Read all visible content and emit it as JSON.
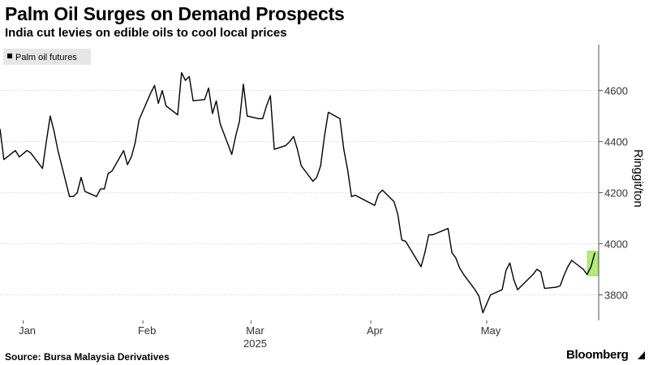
{
  "header": {
    "title": "Palm Oil Surges on Demand Prospects",
    "subtitle": "India cut levies on edible oils to cool local prices"
  },
  "footer": {
    "source": "Source: Bursa Malaysia Derivatives",
    "brand": "Bloomberg"
  },
  "colors": {
    "line": "#000000",
    "highlight": "#a6ea5e",
    "highlight_border": "#7cc236",
    "grid": "#cfcfcf",
    "axis_text": "#333333"
  },
  "chart_data": {
    "type": "line",
    "title": "Palm Oil Surges on Demand Prospects",
    "ylabel": "Ringgit/ton",
    "xlabel": "",
    "legend": {
      "entries": [
        "Palm oil futures"
      ],
      "placement": "top-left"
    },
    "grid": true,
    "ylim": [
      3700,
      4780
    ],
    "xlim": [
      "2024-12-26",
      "2025-05-30"
    ],
    "y_ticks": [
      3800,
      4000,
      4200,
      4400,
      4600
    ],
    "y_tick_labels": [
      "3800",
      "4000",
      "4200",
      "4400",
      "4600"
    ],
    "x_tick_labels": [
      {
        "date": "2025-01-01",
        "label": "Jan"
      },
      {
        "date": "2025-02-01",
        "label": "Feb"
      },
      {
        "date": "2025-03-01",
        "label": "Mar"
      },
      {
        "date": "2025-04-01",
        "label": "Apr"
      },
      {
        "date": "2025-05-01",
        "label": "May"
      }
    ],
    "year_label": "2025",
    "series": [
      {
        "name": "Palm oil futures",
        "x": [
          "2024-12-26",
          "2024-12-27",
          "2024-12-30",
          "2024-12-31",
          "2025-01-02",
          "2025-01-03",
          "2025-01-06",
          "2025-01-07",
          "2025-01-08",
          "2025-01-09",
          "2025-01-10",
          "2025-01-13",
          "2025-01-14",
          "2025-01-15",
          "2025-01-16",
          "2025-01-17",
          "2025-01-20",
          "2025-01-21",
          "2025-01-22",
          "2025-01-23",
          "2025-01-24",
          "2025-01-27",
          "2025-01-28",
          "2025-01-29",
          "2025-01-30",
          "2025-01-31",
          "2025-02-03",
          "2025-02-04",
          "2025-02-05",
          "2025-02-06",
          "2025-02-07",
          "2025-02-10",
          "2025-02-11",
          "2025-02-12",
          "2025-02-13",
          "2025-02-14",
          "2025-02-17",
          "2025-02-18",
          "2025-02-19",
          "2025-02-20",
          "2025-02-21",
          "2025-02-24",
          "2025-02-25",
          "2025-02-26",
          "2025-02-27",
          "2025-02-28",
          "2025-03-03",
          "2025-03-04",
          "2025-03-05",
          "2025-03-06",
          "2025-03-07",
          "2025-03-10",
          "2025-03-11",
          "2025-03-12",
          "2025-03-13",
          "2025-03-14",
          "2025-03-17",
          "2025-03-18",
          "2025-03-19",
          "2025-03-20",
          "2025-03-21",
          "2025-03-24",
          "2025-03-25",
          "2025-03-26",
          "2025-03-27",
          "2025-03-28",
          "2025-04-02",
          "2025-04-03",
          "2025-04-04",
          "2025-04-07",
          "2025-04-08",
          "2025-04-09",
          "2025-04-10",
          "2025-04-11",
          "2025-04-14",
          "2025-04-15",
          "2025-04-16",
          "2025-04-17",
          "2025-04-21",
          "2025-04-22",
          "2025-04-23",
          "2025-04-24",
          "2025-04-25",
          "2025-04-28",
          "2025-04-29",
          "2025-04-30",
          "2025-05-02",
          "2025-05-05",
          "2025-05-06",
          "2025-05-07",
          "2025-05-08",
          "2025-05-09",
          "2025-05-13",
          "2025-05-14",
          "2025-05-15",
          "2025-05-16",
          "2025-05-19",
          "2025-05-20",
          "2025-05-21",
          "2025-05-22",
          "2025-05-23",
          "2025-05-26",
          "2025-05-27",
          "2025-05-28",
          "2025-05-29"
        ],
        "values": [
          4450,
          4330,
          4365,
          4340,
          4365,
          4355,
          4295,
          4400,
          4500,
          4440,
          4365,
          4185,
          4185,
          4200,
          4260,
          4205,
          4185,
          4215,
          4215,
          4275,
          4285,
          4365,
          4310,
          4340,
          4395,
          4485,
          4590,
          4620,
          4550,
          4600,
          4540,
          4505,
          4670,
          4640,
          4655,
          4560,
          4565,
          4610,
          4510,
          4560,
          4470,
          4350,
          4420,
          4480,
          4625,
          4500,
          4490,
          4490,
          4540,
          4580,
          4370,
          4385,
          4400,
          4420,
          4370,
          4305,
          4245,
          4260,
          4305,
          4420,
          4515,
          4490,
          4370,
          4290,
          4185,
          4190,
          4150,
          4195,
          4210,
          4165,
          4115,
          4015,
          4010,
          3985,
          3910,
          3965,
          4035,
          4035,
          4060,
          3965,
          3945,
          3905,
          3880,
          3820,
          3795,
          3730,
          3800,
          3820,
          3895,
          3925,
          3860,
          3820,
          3880,
          3900,
          3890,
          3825,
          3830,
          3835,
          3875,
          3910,
          3935,
          3900,
          3880,
          3910,
          3965
        ]
      }
    ],
    "highlight": {
      "x_start": "2025-05-28",
      "x_end": "2025-05-29",
      "y_range": [
        3875,
        3970
      ]
    }
  }
}
